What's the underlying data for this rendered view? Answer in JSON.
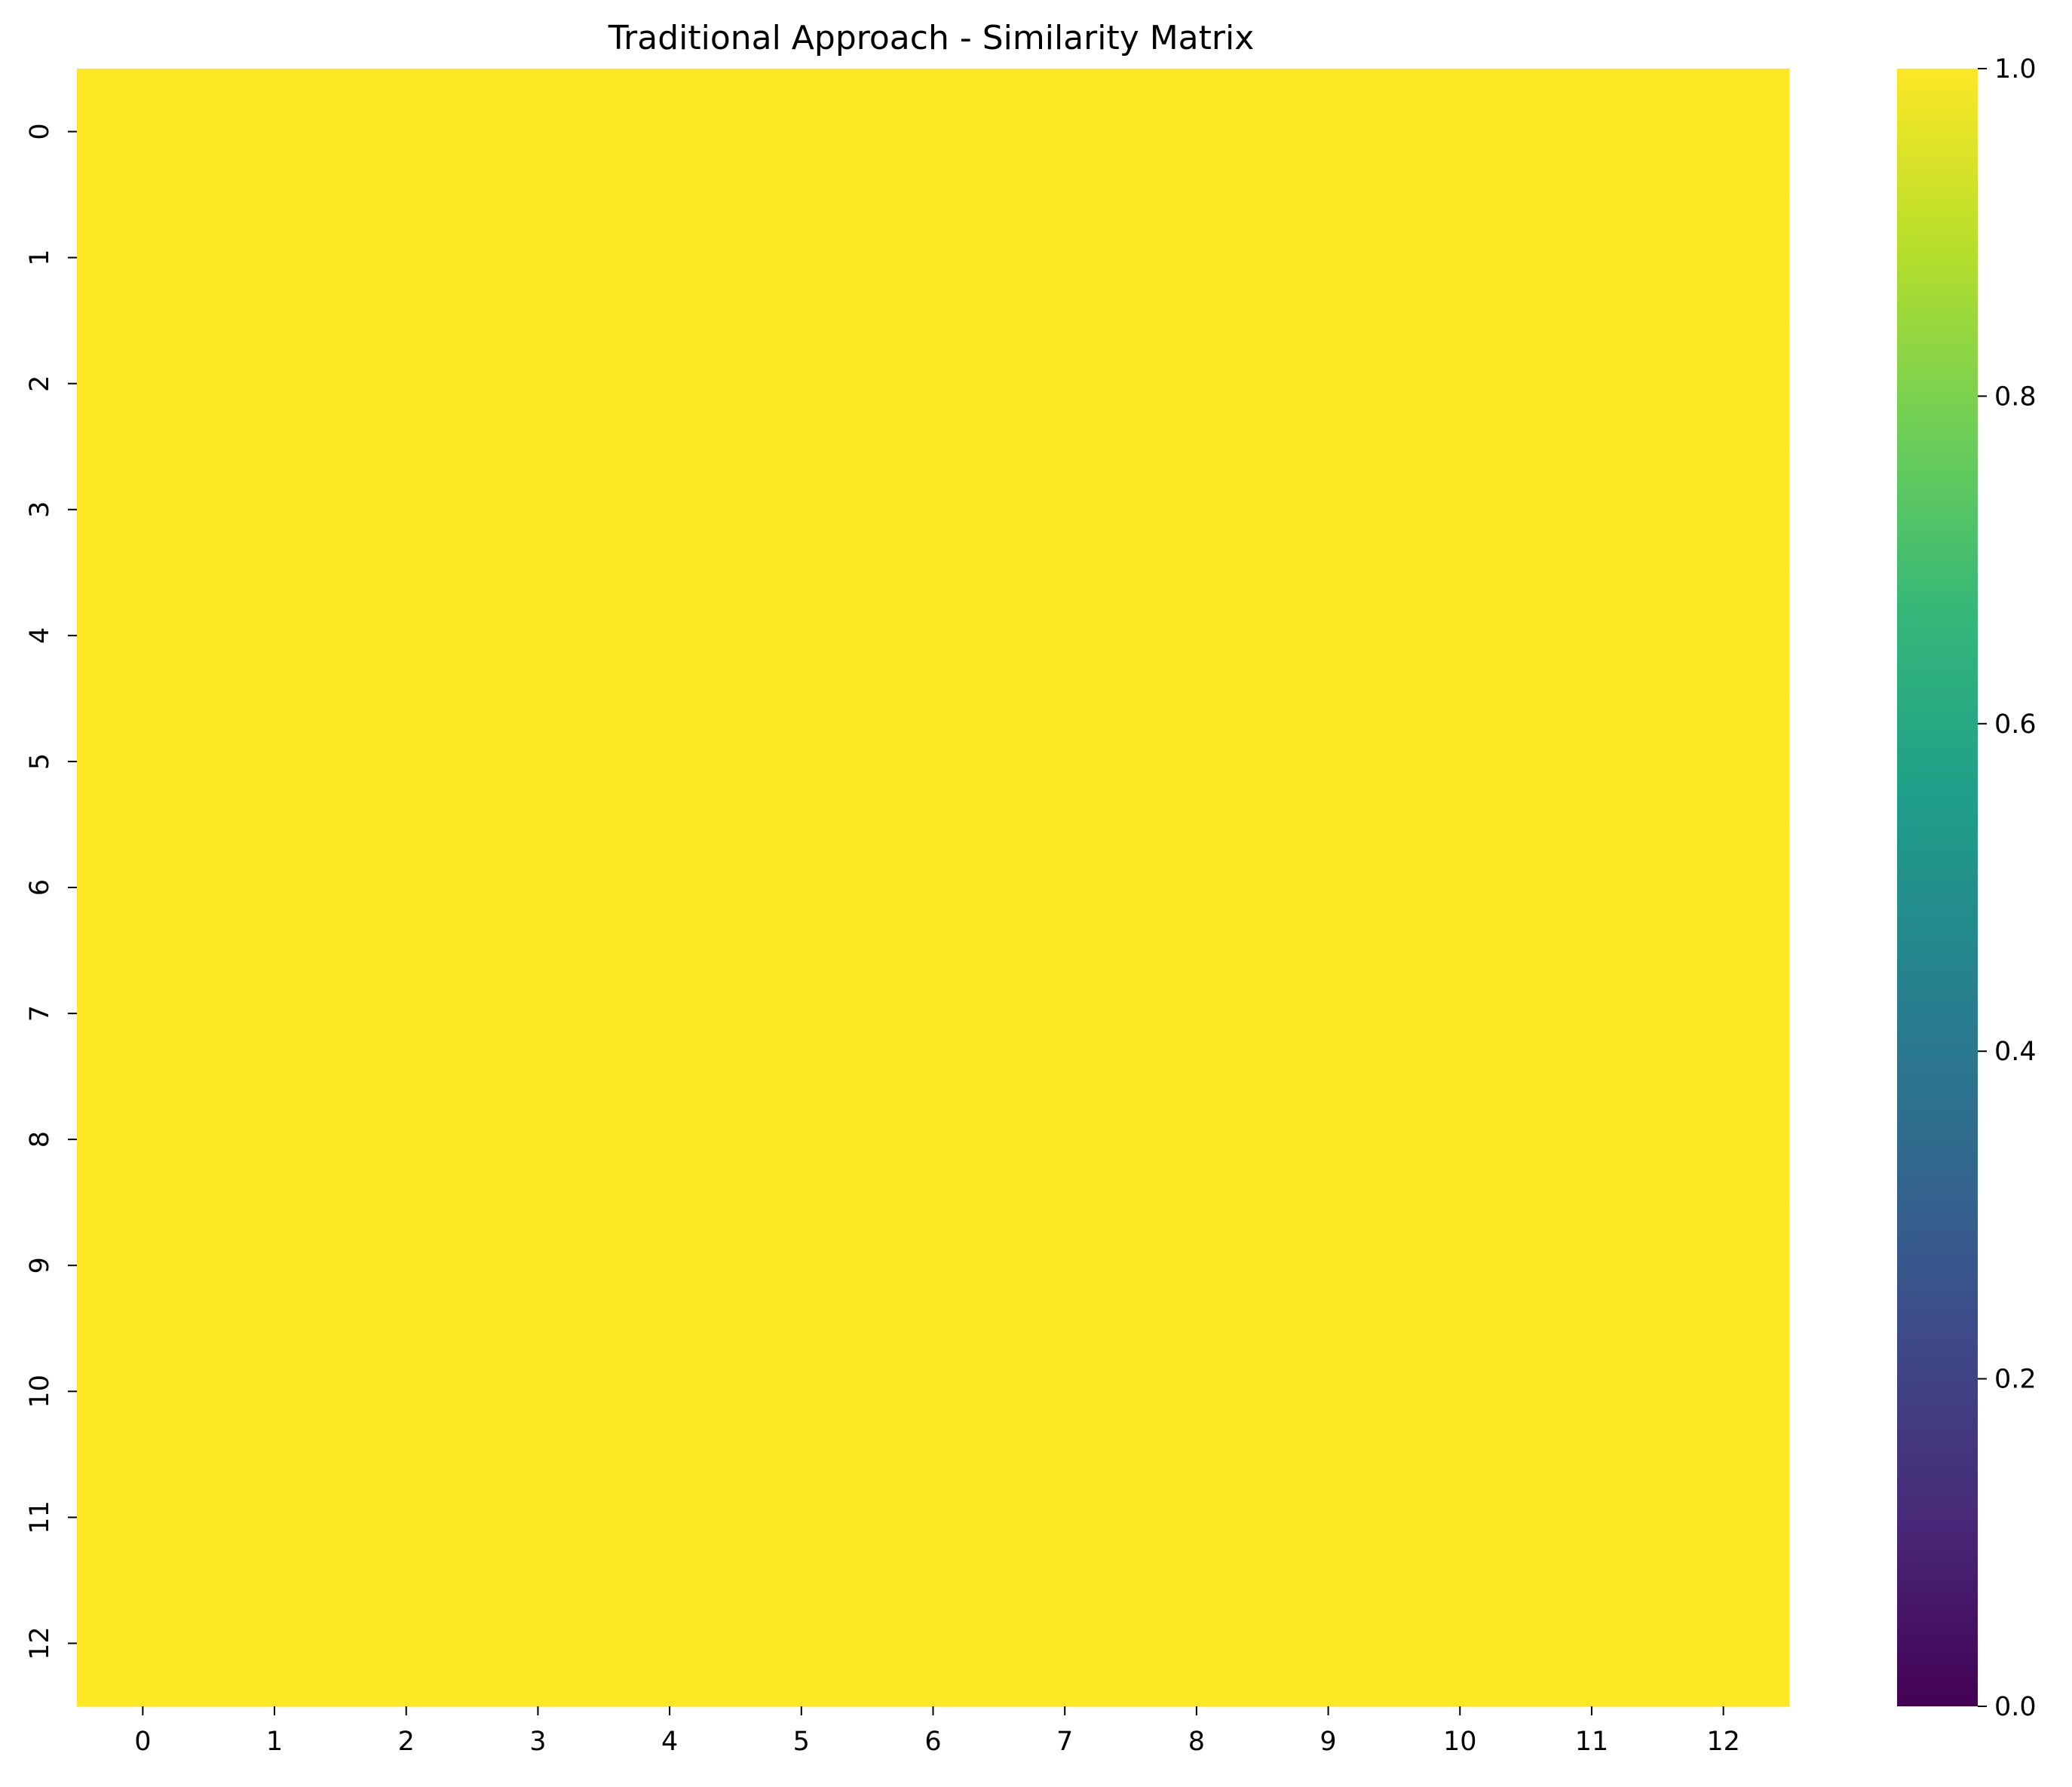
{
  "chart_data": {
    "type": "heatmap",
    "title": "Traditional Approach - Similarity Matrix",
    "xlabel": "",
    "ylabel": "",
    "x_categories": [
      "0",
      "1",
      "2",
      "3",
      "4",
      "5",
      "6",
      "7",
      "8",
      "9",
      "10",
      "11",
      "12"
    ],
    "y_categories": [
      "0",
      "1",
      "2",
      "3",
      "4",
      "5",
      "6",
      "7",
      "8",
      "9",
      "10",
      "11",
      "12"
    ],
    "values": [
      [
        1,
        1,
        1,
        1,
        1,
        1,
        1,
        1,
        1,
        1,
        1,
        1,
        1
      ],
      [
        1,
        1,
        1,
        1,
        1,
        1,
        1,
        1,
        1,
        1,
        1,
        1,
        1
      ],
      [
        1,
        1,
        1,
        1,
        1,
        1,
        1,
        1,
        1,
        1,
        1,
        1,
        1
      ],
      [
        1,
        1,
        1,
        1,
        1,
        1,
        1,
        1,
        1,
        1,
        1,
        1,
        1
      ],
      [
        1,
        1,
        1,
        1,
        1,
        1,
        1,
        1,
        1,
        1,
        1,
        1,
        1
      ],
      [
        1,
        1,
        1,
        1,
        1,
        1,
        1,
        1,
        1,
        1,
        1,
        1,
        1
      ],
      [
        1,
        1,
        1,
        1,
        1,
        1,
        1,
        1,
        1,
        1,
        1,
        1,
        1
      ],
      [
        1,
        1,
        1,
        1,
        1,
        1,
        1,
        1,
        1,
        1,
        1,
        1,
        1
      ],
      [
        1,
        1,
        1,
        1,
        1,
        1,
        1,
        1,
        1,
        1,
        1,
        1,
        1
      ],
      [
        1,
        1,
        1,
        1,
        1,
        1,
        1,
        1,
        1,
        1,
        1,
        1,
        1
      ],
      [
        1,
        1,
        1,
        1,
        1,
        1,
        1,
        1,
        1,
        1,
        1,
        1,
        1
      ],
      [
        1,
        1,
        1,
        1,
        1,
        1,
        1,
        1,
        1,
        1,
        1,
        1,
        1
      ],
      [
        1,
        1,
        1,
        1,
        1,
        1,
        1,
        1,
        1,
        1,
        1,
        1,
        1
      ]
    ],
    "colormap": "viridis",
    "colorbar": {
      "range": [
        0.0,
        1.0
      ],
      "ticks": [
        "0.0",
        "0.2",
        "0.4",
        "0.6",
        "0.8",
        "1.0"
      ],
      "colors": [
        "#440154",
        "#482878",
        "#3e4989",
        "#31688e",
        "#26828e",
        "#1f9e89",
        "#35b779",
        "#6ece58",
        "#b5de2b",
        "#fde725"
      ]
    },
    "grid": false
  }
}
